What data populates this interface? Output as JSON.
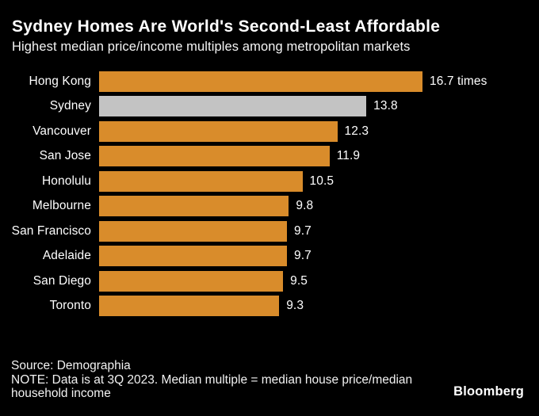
{
  "header": {
    "title": "Sydney Homes Are World's Second-Least Affordable",
    "subtitle": "Highest median price/income multiples among metropolitan markets"
  },
  "footer": {
    "source": "Source: Demographia",
    "note": "NOTE: Data is at 3Q 2023. Median multiple = median house price/median household income",
    "brand": "Bloomberg"
  },
  "colors": {
    "background": "#000000",
    "bar": "#D98C2B",
    "highlight_bar": "#C3C3C3",
    "text": "#FFFFFF"
  },
  "chart_data": {
    "type": "bar",
    "orientation": "horizontal",
    "title": "Sydney Homes Are World's Second-Least Affordable",
    "subtitle": "Highest median price/income multiples among metropolitan markets",
    "categories": [
      "Hong Kong",
      "Sydney",
      "Vancouver",
      "San Jose",
      "Honolulu",
      "Melbourne",
      "San Francisco",
      "Adelaide",
      "San Diego",
      "Toronto"
    ],
    "values": [
      16.7,
      13.8,
      12.3,
      11.9,
      10.5,
      9.8,
      9.7,
      9.7,
      9.5,
      9.3
    ],
    "value_labels": [
      "16.7 times",
      "13.8",
      "12.3",
      "11.9",
      "10.5",
      "9.8",
      "9.7",
      "9.7",
      "9.5",
      "9.3"
    ],
    "unit": "times",
    "highlight_category": "Sydney",
    "xlim": [
      0,
      16.7
    ],
    "grid": false,
    "legend": false,
    "xlabel": "",
    "ylabel": ""
  }
}
